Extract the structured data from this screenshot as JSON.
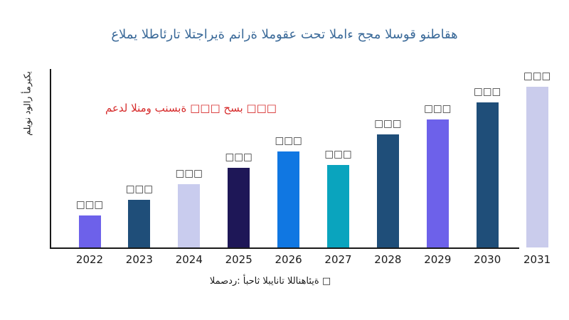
{
  "title": {
    "text": "عالمي الطائرات التجارية منارة الموقع تحت الماء حجم السوق ونطاقه",
    "color": "#3B6A99"
  },
  "annotation": {
    "text": "معدل النمو بنسبة □□□ حسب □□□",
    "color": "#D62A2A"
  },
  "y_axis_label": "مليون دولار أمريكي",
  "source_caption": "المصدر: أبحاث البيانات اللانهائية □",
  "chart_data": {
    "type": "bar",
    "title": "عالمي الطائرات التجارية منارة الموقع تحت الماء حجم السوق ونطاقه",
    "xlabel": "",
    "ylabel": "مليون دولار أمريكي",
    "categories": [
      "2022",
      "2023",
      "2024",
      "2025",
      "2026",
      "2027",
      "2028",
      "2029",
      "2030",
      "2031"
    ],
    "values": [
      45,
      67,
      89,
      112,
      135,
      116,
      159,
      180,
      204,
      226
    ],
    "value_labels": [
      "□□□",
      "□□□",
      "□□□",
      "□□□",
      "□□□",
      "□□□",
      "□□□",
      "□□□",
      "□□□",
      "□□□"
    ],
    "bar_colors": [
      "#6D61EA",
      "#1F4E79",
      "#C9CCEE",
      "#1E1757",
      "#1077E2",
      "#0AA4BE",
      "#1F4E79",
      "#6D61EA",
      "#1F4E79",
      "#CACCEC"
    ],
    "ylim": [
      0,
      251
    ],
    "y_tick_labels": [],
    "grid": false,
    "legend": false,
    "annotation": "معدل النمو بنسبة □□□ حسب □□□",
    "source": "المصدر: أبحاث البيانات اللانهائية □",
    "axis_color": "#1a1a1a"
  }
}
